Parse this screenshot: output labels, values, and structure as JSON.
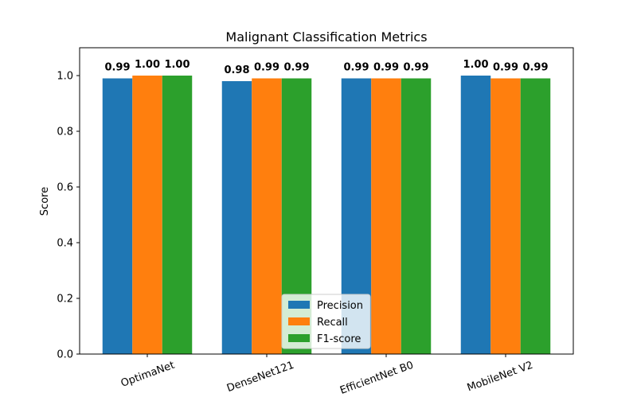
{
  "chart_data": {
    "type": "bar",
    "title": "Malignant Classification Metrics",
    "xlabel": "",
    "ylabel": "Score",
    "ylim": [
      0,
      1.1
    ],
    "yticks": [
      0.0,
      0.2,
      0.4,
      0.6,
      0.8,
      1.0
    ],
    "ytick_labels": [
      "0.0",
      "0.2",
      "0.4",
      "0.6",
      "0.8",
      "1.0"
    ],
    "categories": [
      "OptimaNet",
      "DenseNet121",
      "EfficientNet B0",
      "MobileNet V2"
    ],
    "series": [
      {
        "name": "Precision",
        "color": "#1f77b4",
        "values": [
          0.99,
          0.98,
          0.99,
          1.0
        ],
        "labels": [
          "0.99",
          "0.98",
          "0.99",
          "1.00"
        ]
      },
      {
        "name": "Recall",
        "color": "#ff7f0e",
        "values": [
          1.0,
          0.99,
          0.99,
          0.99
        ],
        "labels": [
          "1.00",
          "0.99",
          "0.99",
          "0.99"
        ]
      },
      {
        "name": "F1-score",
        "color": "#2ca02c",
        "values": [
          1.0,
          0.99,
          0.99,
          0.99
        ],
        "labels": [
          "1.00",
          "0.99",
          "0.99",
          "0.99"
        ]
      }
    ],
    "grid": false,
    "legend_position": "bottom-center",
    "x_tick_rotation_deg": 20
  }
}
